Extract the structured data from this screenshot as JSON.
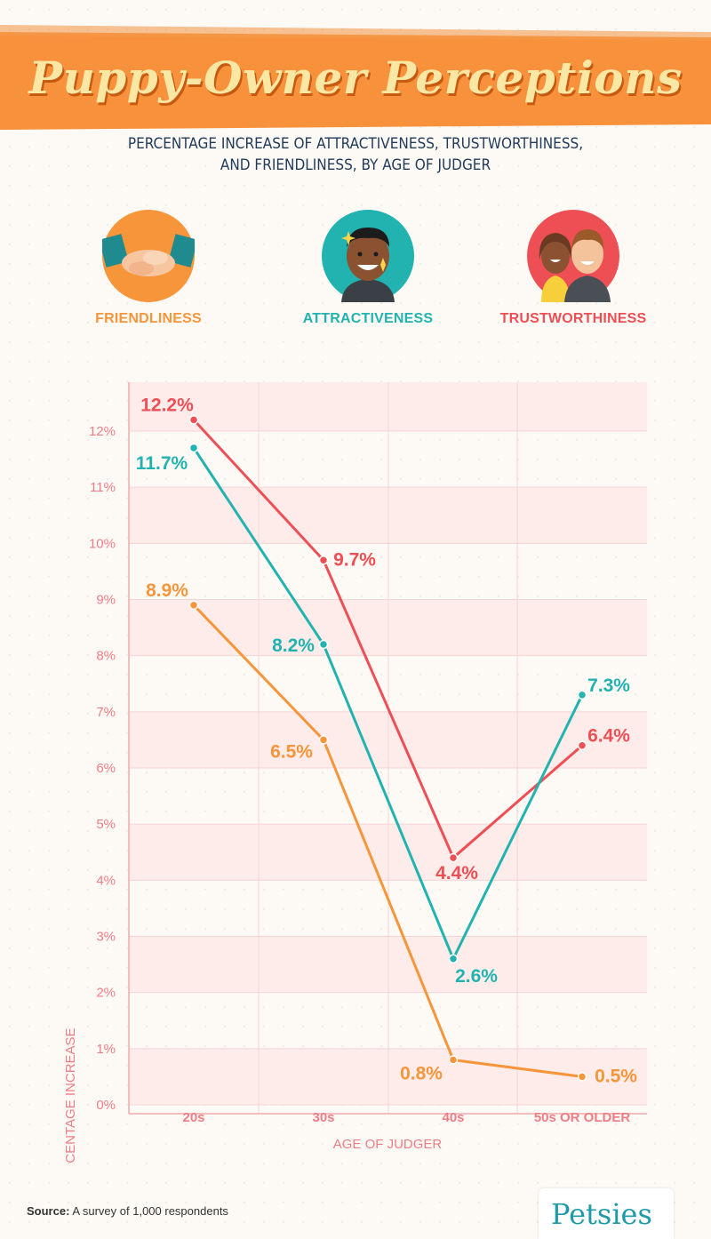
{
  "header": {
    "title": "Puppy-Owner Perceptions",
    "subtitle_line1": "Percentage increase of attractiveness, trustworthiness,",
    "subtitle_line2": "and friendliness, by age of judger"
  },
  "legend": [
    {
      "label": "FRIENDLINESS",
      "icon": "handshake-icon",
      "color": "#f7953b"
    },
    {
      "label": "ATTRACTIVENESS",
      "icon": "man-face-icon",
      "color": "#22b3b0"
    },
    {
      "label": "TRUSTWORTHINESS",
      "icon": "couple-icon",
      "color": "#ee4f55"
    }
  ],
  "chart_data": {
    "type": "line",
    "title": "Puppy-Owner Perceptions",
    "xlabel": "AGE OF JUDGER",
    "ylabel": "PERCENTAGE INCREASE",
    "categories": [
      "20s",
      "30s",
      "40s",
      "50s OR OLDER"
    ],
    "ylim": [
      0,
      12.9
    ],
    "yticks": [
      0,
      1,
      2,
      3,
      4,
      5,
      6,
      7,
      8,
      9,
      10,
      11,
      12
    ],
    "ytick_labels": [
      "0%",
      "1%",
      "2%",
      "3%",
      "4%",
      "5%",
      "6%",
      "7%",
      "8%",
      "9%",
      "10%",
      "11%",
      "12%"
    ],
    "grid": true,
    "series": [
      {
        "name": "TRUSTWORTHINESS",
        "color": "#ee4f55",
        "values": [
          12.2,
          9.7,
          4.4,
          6.4
        ],
        "labels": [
          "12.2%",
          "9.7%",
          "4.4%",
          "6.4%"
        ]
      },
      {
        "name": "ATTRACTIVENESS",
        "color": "#22b3b0",
        "values": [
          11.7,
          8.2,
          2.6,
          7.3
        ],
        "labels": [
          "11.7%",
          "8.2%",
          "2.6%",
          "7.3%"
        ]
      },
      {
        "name": "FRIENDLINESS",
        "color": "#f7953b",
        "values": [
          8.9,
          6.5,
          0.8,
          0.5
        ],
        "labels": [
          "8.9%",
          "6.5%",
          "0.8%",
          "0.5%"
        ]
      }
    ]
  },
  "footer": {
    "source_label": "Source:",
    "source_text": "A survey of 1,000 respondents",
    "brand": "Petsies"
  }
}
